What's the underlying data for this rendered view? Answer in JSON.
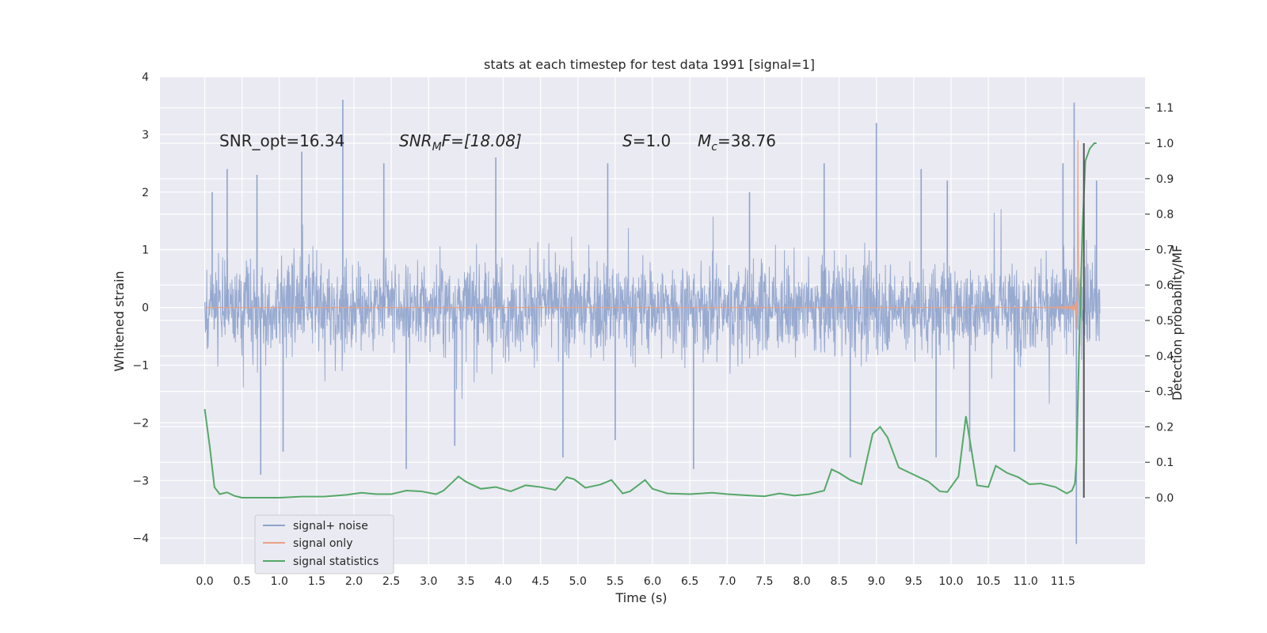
{
  "chart_data": {
    "type": "line",
    "title": "stats at each timestep for test data 1991 [signal=1]",
    "xlabel": "Time (s)",
    "ylabel": "Whitened strain",
    "y2label": "Detection probability/MF",
    "xlim": [
      -0.6,
      12.6
    ],
    "ylim": [
      -4.45,
      4.0
    ],
    "y2lim": [
      -0.1875,
      1.1875
    ],
    "xticks": [
      0.0,
      0.5,
      1.0,
      1.5,
      2.0,
      2.5,
      3.0,
      3.5,
      4.0,
      4.5,
      5.0,
      5.5,
      6.0,
      6.5,
      7.0,
      7.5,
      8.0,
      8.5,
      9.0,
      9.5,
      10.0,
      10.5,
      11.0,
      11.5
    ],
    "yticks": [
      4,
      3,
      2,
      1,
      0,
      -1,
      -2,
      -3,
      -4
    ],
    "y2ticks": [
      0.0,
      0.1,
      0.2,
      0.3,
      0.4,
      0.5,
      0.6,
      0.7,
      0.8,
      0.9,
      1.0,
      1.1
    ],
    "grid": true,
    "colors": {
      "background": "#eaeaf2",
      "grid": "#ffffff",
      "noise": "#8fa3cc",
      "signal": "#e8a184",
      "stats": "#55a868",
      "marker": "#555555"
    },
    "legend": {
      "position": "lower-left",
      "entries": [
        "signal+ noise",
        "signal only",
        "signal statistics"
      ]
    },
    "annotations": {
      "snr_opt": "SNR_opt=16.34",
      "snr_mf_name": "SNR",
      "snr_mf_sub": "M",
      "snr_mf_rest": "F=[18.08]",
      "s_name": "S",
      "s_value": "=1.0",
      "mc_name": "M",
      "mc_sub": "c",
      "mc_value": "=38.76"
    },
    "series": [
      {
        "name": "signal+ noise",
        "axis": "left",
        "x_range": [
          0.0,
          12.0
        ],
        "envelope_typical": [
          -1.5,
          1.6
        ],
        "peaks": [
          [
            0.1,
            2.0
          ],
          [
            0.3,
            2.4
          ],
          [
            0.7,
            2.3
          ],
          [
            0.75,
            -2.9
          ],
          [
            1.05,
            -2.5
          ],
          [
            1.3,
            2.7
          ],
          [
            1.85,
            3.6
          ],
          [
            2.4,
            2.5
          ],
          [
            2.7,
            -2.8
          ],
          [
            3.35,
            -2.4
          ],
          [
            3.9,
            2.6
          ],
          [
            4.8,
            -2.6
          ],
          [
            5.4,
            2.5
          ],
          [
            5.5,
            -2.3
          ],
          [
            6.55,
            -2.8
          ],
          [
            7.3,
            2.0
          ],
          [
            8.3,
            2.5
          ],
          [
            8.65,
            -2.6
          ],
          [
            9.0,
            3.2
          ],
          [
            9.6,
            2.4
          ],
          [
            9.8,
            -2.6
          ],
          [
            9.95,
            2.2
          ],
          [
            10.25,
            -2.5
          ],
          [
            10.85,
            -2.5
          ],
          [
            11.5,
            2.5
          ],
          [
            11.65,
            3.55
          ],
          [
            11.68,
            -4.1
          ],
          [
            11.95,
            2.2
          ]
        ]
      },
      {
        "name": "signal only",
        "axis": "left",
        "x_range": [
          0.0,
          11.72
        ],
        "merger_time": 11.7,
        "peak_amplitude": 3.15
      },
      {
        "name": "signal statistics",
        "axis": "right",
        "x": [
          0.0,
          0.07,
          0.13,
          0.2,
          0.3,
          0.4,
          0.5,
          0.7,
          1.0,
          1.3,
          1.6,
          1.9,
          2.1,
          2.3,
          2.5,
          2.7,
          2.9,
          3.1,
          3.2,
          3.3,
          3.4,
          3.5,
          3.7,
          3.9,
          4.1,
          4.3,
          4.5,
          4.7,
          4.85,
          4.95,
          5.1,
          5.3,
          5.45,
          5.6,
          5.7,
          5.9,
          6.0,
          6.2,
          6.5,
          6.8,
          7.0,
          7.3,
          7.5,
          7.7,
          7.9,
          8.1,
          8.3,
          8.4,
          8.5,
          8.65,
          8.8,
          8.95,
          9.05,
          9.15,
          9.3,
          9.5,
          9.7,
          9.85,
          9.95,
          10.1,
          10.2,
          10.35,
          10.5,
          10.6,
          10.75,
          10.9,
          11.05,
          11.2,
          11.4,
          11.55,
          11.62,
          11.66,
          11.68,
          11.72,
          11.76,
          11.8,
          11.86,
          11.92,
          11.95
        ],
        "y": [
          0.25,
          0.14,
          0.03,
          0.01,
          0.015,
          0.005,
          0.0,
          0.0,
          0.0,
          0.003,
          0.003,
          0.008,
          0.014,
          0.01,
          0.01,
          0.02,
          0.018,
          0.01,
          0.02,
          0.04,
          0.06,
          0.045,
          0.025,
          0.03,
          0.018,
          0.035,
          0.03,
          0.022,
          0.058,
          0.052,
          0.028,
          0.037,
          0.05,
          0.012,
          0.018,
          0.05,
          0.025,
          0.012,
          0.01,
          0.014,
          0.01,
          0.006,
          0.004,
          0.012,
          0.006,
          0.01,
          0.02,
          0.08,
          0.07,
          0.05,
          0.038,
          0.18,
          0.2,
          0.17,
          0.085,
          0.065,
          0.045,
          0.018,
          0.016,
          0.06,
          0.23,
          0.035,
          0.03,
          0.09,
          0.07,
          0.058,
          0.038,
          0.04,
          0.03,
          0.012,
          0.02,
          0.04,
          0.1,
          0.45,
          0.75,
          0.95,
          0.985,
          1.0,
          1.0
        ]
      }
    ]
  }
}
